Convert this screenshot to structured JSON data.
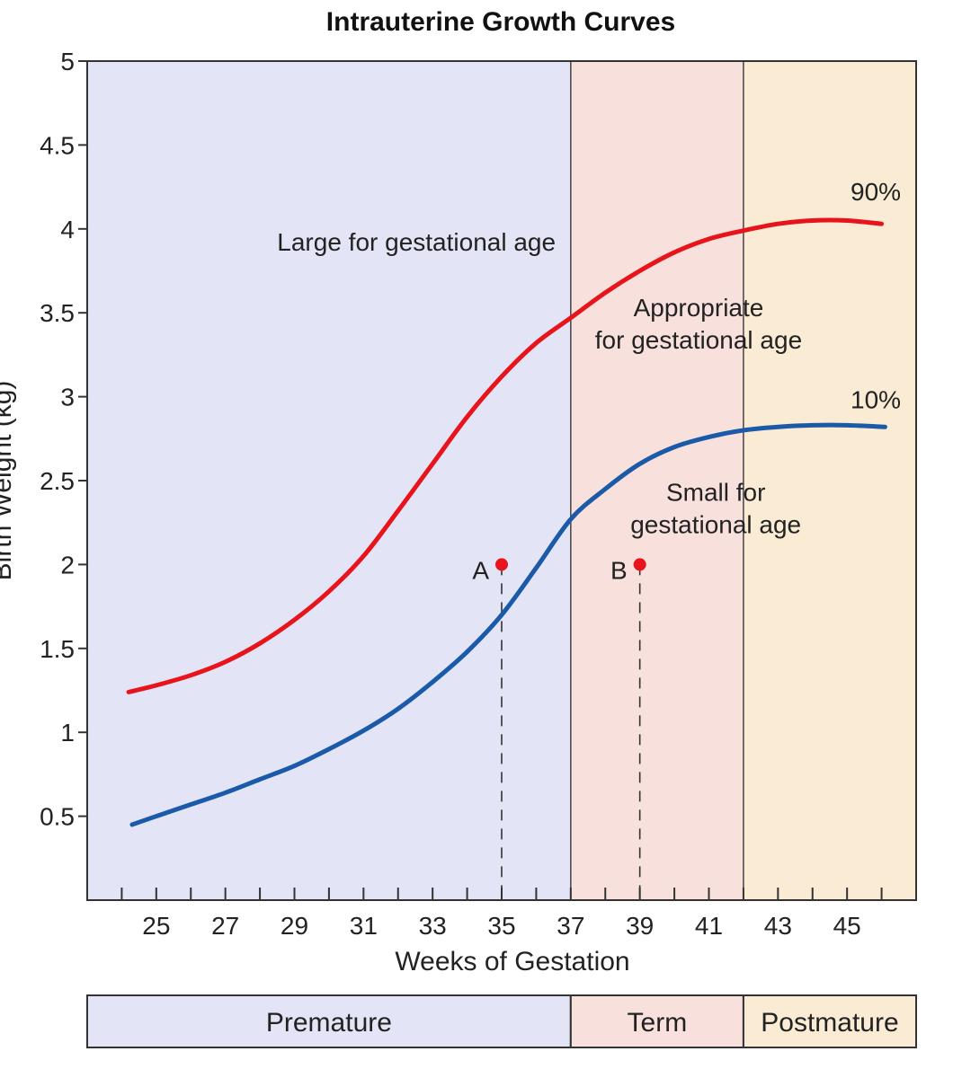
{
  "chart_data": {
    "type": "line",
    "title": "Intrauterine Growth Curves",
    "xlabel": "Weeks of Gestation",
    "ylabel": "Birth Weight (kg)",
    "xlim": [
      23,
      47
    ],
    "ylim": [
      0,
      5
    ],
    "xticks": [
      25,
      27,
      29,
      31,
      33,
      35,
      37,
      39,
      41,
      43,
      45
    ],
    "yticks": [
      0.5,
      1,
      1.5,
      2,
      2.5,
      3,
      3.5,
      4,
      4.5,
      5
    ],
    "yticklabels": [
      "0.5",
      "1",
      "1.5",
      "2",
      "2.5",
      "3",
      "3.5",
      "4",
      "4.5",
      "5"
    ],
    "regions": [
      {
        "name": "Premature",
        "from": 23,
        "to": 37,
        "color": "#e3e4f5"
      },
      {
        "name": "Term",
        "from": 37,
        "to": 42,
        "color": "#f8e0dd"
      },
      {
        "name": "Postmature",
        "from": 42,
        "to": 47,
        "color": "#faebd4"
      }
    ],
    "series": [
      {
        "name": "90%",
        "color": "#e8141c",
        "x": [
          24.2,
          25,
          26,
          27,
          28,
          29,
          30,
          31,
          32,
          33,
          34,
          35,
          36,
          37,
          38,
          39,
          40,
          41,
          42,
          43,
          44,
          45,
          46
        ],
        "y": [
          1.24,
          1.28,
          1.34,
          1.42,
          1.53,
          1.67,
          1.84,
          2.05,
          2.32,
          2.6,
          2.88,
          3.12,
          3.32,
          3.47,
          3.62,
          3.75,
          3.86,
          3.94,
          3.99,
          4.03,
          4.05,
          4.05,
          4.03
        ]
      },
      {
        "name": "10%",
        "color": "#1a5aa8",
        "x": [
          24.3,
          25,
          26,
          27,
          28,
          29,
          30,
          31,
          32,
          33,
          34,
          35,
          36,
          37,
          38,
          39,
          40,
          41,
          42,
          43,
          44,
          45,
          46.1
        ],
        "y": [
          0.45,
          0.5,
          0.57,
          0.64,
          0.72,
          0.8,
          0.9,
          1.01,
          1.14,
          1.3,
          1.48,
          1.7,
          1.98,
          2.27,
          2.45,
          2.6,
          2.7,
          2.76,
          2.8,
          2.82,
          2.83,
          2.83,
          2.82
        ]
      }
    ],
    "series_labels": [
      {
        "text": "90%",
        "x": 45.1,
        "y": 4.17
      },
      {
        "text": "10%",
        "x": 45.1,
        "y": 2.93
      }
    ],
    "points": [
      {
        "label": "A",
        "x": 35,
        "y": 2.0,
        "color": "#e8141c"
      },
      {
        "label": "B",
        "x": 39,
        "y": 2.0,
        "color": "#e8141c"
      }
    ],
    "annotations": [
      {
        "lines": [
          "Large for gestational age"
        ],
        "x": 28.5,
        "y": 3.87,
        "anchor": "start"
      },
      {
        "lines": [
          "Appropriate",
          "for gestational age"
        ],
        "x": 40.7,
        "y": 3.48,
        "anchor": "middle"
      },
      {
        "lines": [
          "Small for",
          "gestational age"
        ],
        "x": 41.2,
        "y": 2.38,
        "anchor": "middle"
      }
    ]
  },
  "bands": [
    {
      "name": "Premature"
    },
    {
      "name": "Term"
    },
    {
      "name": "Postmature"
    }
  ]
}
